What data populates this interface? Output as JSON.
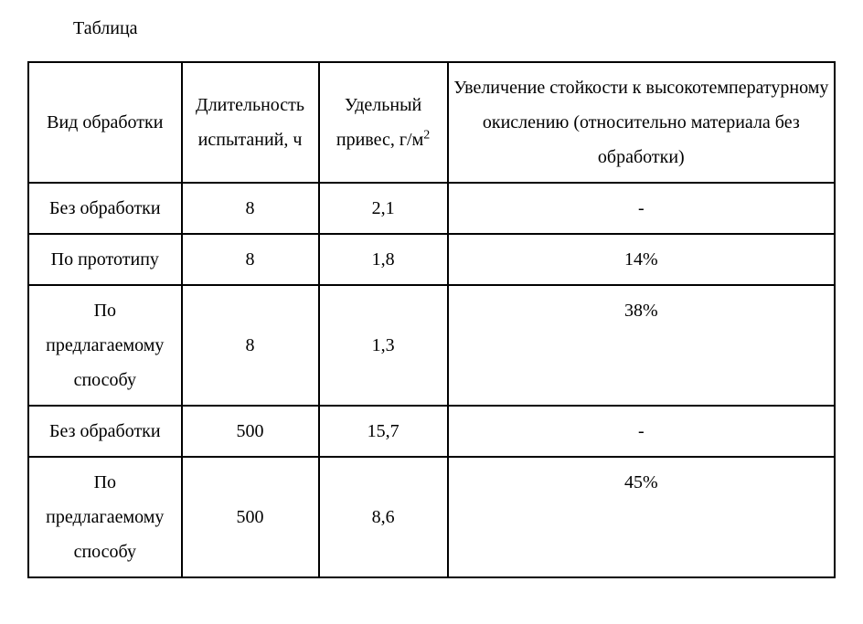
{
  "title": "Таблица",
  "table": {
    "columns": [
      "col1",
      "col2",
      "col3",
      "col4"
    ],
    "headers": {
      "h1": "Вид обработки",
      "h2": "Длительность испытаний, ч",
      "h3_part1": "Удельный привес, г/м",
      "h3_sup": "2",
      "h4": "Увеличение стойкости к высокотемпературному окислению (относительно материала без обработки)"
    },
    "rows": [
      {
        "c1": "Без обработки",
        "c2": "8",
        "c3": "2,1",
        "c4": "-"
      },
      {
        "c1": "По прототипу",
        "c2": "8",
        "c3": "1,8",
        "c4": "14%"
      },
      {
        "c1": "По предлагаемому способу",
        "c2": "8",
        "c3": "1,3",
        "c4": "38%",
        "c4_top": true
      },
      {
        "c1": "Без обработки",
        "c2": "500",
        "c3": "15,7",
        "c4": "-"
      },
      {
        "c1": "По предлагаемому способу",
        "c2": "500",
        "c3": "8,6",
        "c4": "45%",
        "c4_top": true
      }
    ],
    "border_color": "#000000",
    "text_color": "#000000",
    "background_color": "#ffffff",
    "font_family": "Times New Roman",
    "font_size_pt": 15,
    "line_height": 1.9
  }
}
